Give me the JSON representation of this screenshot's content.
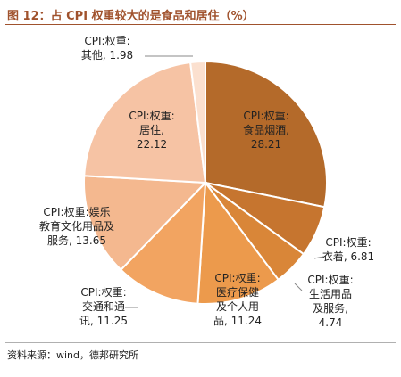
{
  "header": {
    "title": "图 12：占 CPI 权重较大的是食品和居住（%）"
  },
  "footer": {
    "source": "资料来源：wind，德邦研究所"
  },
  "chart_data": {
    "type": "pie",
    "title": "图 12：占 CPI 权重较大的是食品和居住（%）",
    "slices": [
      {
        "name": "CPI:权重:食品烟酒",
        "label_lines": [
          "CPI:权重:",
          "食品烟酒,",
          "28.21"
        ],
        "value": 28.21,
        "color": "#b46a2a"
      },
      {
        "name": "CPI:权重:衣着",
        "label_lines": [
          "CPI:权重:",
          "衣着, 6.81"
        ],
        "value": 6.81,
        "color": "#c6752f"
      },
      {
        "name": "CPI:权重:生活用品及服务",
        "label_lines": [
          "CPI:权重:",
          "生活用品",
          "及服务,",
          "4.74"
        ],
        "value": 4.74,
        "color": "#d98638"
      },
      {
        "name": "CPI:权重:医疗保健及个人用品",
        "label_lines": [
          "CPI:权重:",
          "医疗保健",
          "及个人用",
          "品, 11.24"
        ],
        "value": 11.24,
        "color": "#ec9a4c"
      },
      {
        "name": "CPI:权重:交通和通讯",
        "label_lines": [
          "CPI:权重:",
          "交通和通",
          "讯, 11.25"
        ],
        "value": 11.25,
        "color": "#f2a461"
      },
      {
        "name": "CPI:权重:娱乐教育文化用品及服务",
        "label_lines": [
          "CPI:权重:娱乐",
          "教育文化用品及",
          "服务, 13.65"
        ],
        "value": 13.65,
        "color": "#f4b88f"
      },
      {
        "name": "CPI:权重:居住",
        "label_lines": [
          "CPI:权重:",
          "居住,",
          "22.12"
        ],
        "value": 22.12,
        "color": "#f6c3a4"
      },
      {
        "name": "CPI:权重:其他",
        "label_lines": [
          "CPI:权重:",
          "其他, 1.98"
        ],
        "value": 1.98,
        "color": "#fbe0cf"
      }
    ],
    "start_angle_deg": 0,
    "direction": "clockwise",
    "legend": "none"
  }
}
